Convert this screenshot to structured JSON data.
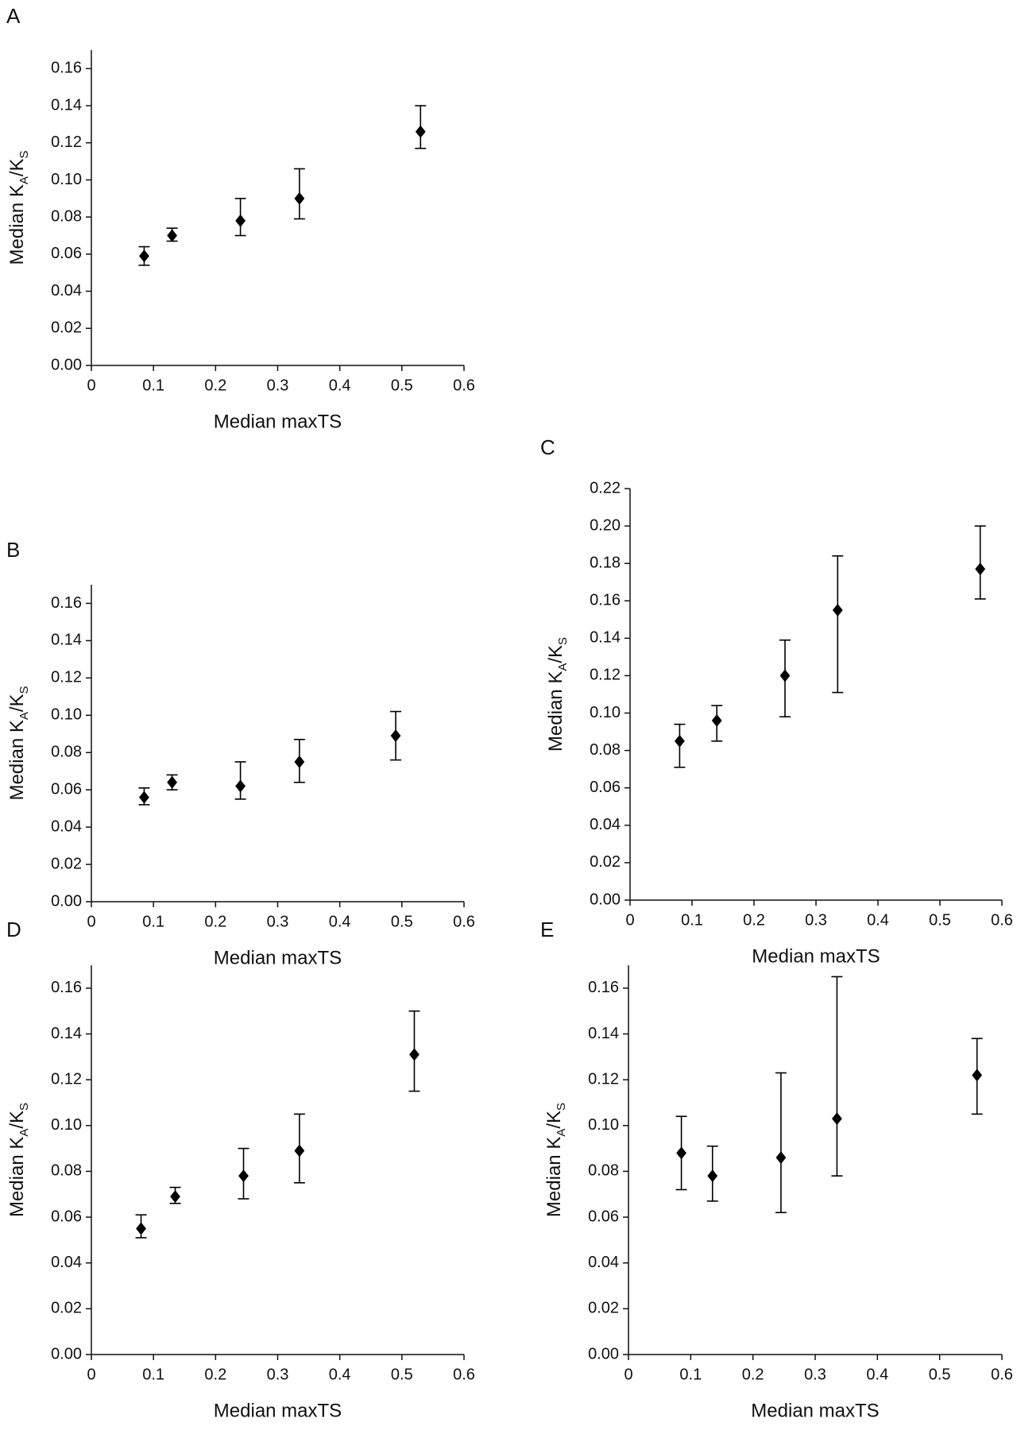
{
  "chart_data": [
    {
      "panel_label": "A",
      "type": "scatter",
      "xlabel": "Median maxTS",
      "ylabel": [
        "Median K",
        "A",
        "/K",
        "S"
      ],
      "color": "#000000",
      "x": [
        0.085,
        0.13,
        0.24,
        0.335,
        0.53
      ],
      "values": [
        0.059,
        0.07,
        0.078,
        0.09,
        0.126
      ],
      "lower": [
        0.054,
        0.067,
        0.07,
        0.079,
        0.117
      ],
      "upper": [
        0.064,
        0.074,
        0.09,
        0.106,
        0.14
      ],
      "xlim": [
        0,
        0.6
      ],
      "ylim": [
        0,
        0.17
      ],
      "xticks": [
        0,
        0.1,
        0.2,
        0.3,
        0.4,
        0.5,
        0.6
      ],
      "yticks": [
        {
          "value": 0,
          "label": "0.00"
        },
        {
          "value": 0.02,
          "label": "0.02"
        },
        {
          "value": 0.04,
          "label": "0.04"
        },
        {
          "value": 0.06,
          "label": "0.06"
        },
        {
          "value": 0.08,
          "label": "0.08"
        },
        {
          "value": 0.1,
          "label": "0.10"
        },
        {
          "value": 0.12,
          "label": "0.12"
        },
        {
          "value": 0.14,
          "label": "0.14"
        },
        {
          "value": 0.16,
          "label": "0.16"
        }
      ]
    },
    {
      "panel_label": "B",
      "type": "scatter",
      "xlabel": "Median maxTS",
      "ylabel": [
        "Median K",
        "A",
        "/K",
        "S"
      ],
      "color": "#000000",
      "x": [
        0.085,
        0.13,
        0.24,
        0.335,
        0.49
      ],
      "values": [
        0.056,
        0.064,
        0.062,
        0.075,
        0.089
      ],
      "lower": [
        0.052,
        0.06,
        0.055,
        0.064,
        0.076
      ],
      "upper": [
        0.061,
        0.068,
        0.075,
        0.087,
        0.102
      ],
      "xlim": [
        0,
        0.6
      ],
      "ylim": [
        0,
        0.17
      ],
      "xticks": [
        0,
        0.1,
        0.2,
        0.3,
        0.4,
        0.5,
        0.6
      ],
      "yticks": [
        {
          "value": 0,
          "label": "0.00"
        },
        {
          "value": 0.02,
          "label": "0.02"
        },
        {
          "value": 0.04,
          "label": "0.04"
        },
        {
          "value": 0.06,
          "label": "0.06"
        },
        {
          "value": 0.08,
          "label": "0.08"
        },
        {
          "value": 0.1,
          "label": "0.10"
        },
        {
          "value": 0.12,
          "label": "0.12"
        },
        {
          "value": 0.14,
          "label": "0.14"
        },
        {
          "value": 0.16,
          "label": "0.16"
        }
      ]
    },
    {
      "panel_label": "C",
      "type": "scatter",
      "xlabel": "Median maxTS",
      "ylabel": [
        "Median K",
        "A",
        "/K",
        "S"
      ],
      "color": "#000000",
      "x": [
        0.08,
        0.14,
        0.25,
        0.335,
        0.565
      ],
      "values": [
        0.085,
        0.096,
        0.12,
        0.155,
        0.177
      ],
      "lower": [
        0.071,
        0.085,
        0.098,
        0.111,
        0.161
      ],
      "upper": [
        0.094,
        0.104,
        0.139,
        0.184,
        0.2
      ],
      "xlim": [
        0,
        0.6
      ],
      "ylim": [
        0,
        0.22
      ],
      "xticks": [
        0,
        0.1,
        0.2,
        0.3,
        0.4,
        0.5,
        0.6
      ],
      "yticks": [
        {
          "value": 0,
          "label": "0.00"
        },
        {
          "value": 0.02,
          "label": "0.02"
        },
        {
          "value": 0.04,
          "label": "0.04"
        },
        {
          "value": 0.06,
          "label": "0.06"
        },
        {
          "value": 0.08,
          "label": "0.08"
        },
        {
          "value": 0.1,
          "label": "0.10"
        },
        {
          "value": 0.12,
          "label": "0.12"
        },
        {
          "value": 0.14,
          "label": "0.14"
        },
        {
          "value": 0.16,
          "label": "0.16"
        },
        {
          "value": 0.18,
          "label": "0.18"
        },
        {
          "value": 0.2,
          "label": "0.20"
        },
        {
          "value": 0.22,
          "label": "0.22"
        }
      ]
    },
    {
      "panel_label": "D",
      "type": "scatter",
      "xlabel": "Median maxTS",
      "ylabel": [
        "Median K",
        "A",
        "/K",
        "S"
      ],
      "color": "#000000",
      "x": [
        0.08,
        0.135,
        0.245,
        0.335,
        0.52
      ],
      "values": [
        0.055,
        0.069,
        0.078,
        0.089,
        0.131
      ],
      "lower": [
        0.051,
        0.066,
        0.068,
        0.075,
        0.115
      ],
      "upper": [
        0.061,
        0.073,
        0.09,
        0.105,
        0.15
      ],
      "xlim": [
        0,
        0.6
      ],
      "ylim": [
        0,
        0.17
      ],
      "xticks": [
        0,
        0.1,
        0.2,
        0.3,
        0.4,
        0.5,
        0.6
      ],
      "yticks": [
        {
          "value": 0,
          "label": "0.00"
        },
        {
          "value": 0.02,
          "label": "0.02"
        },
        {
          "value": 0.04,
          "label": "0.04"
        },
        {
          "value": 0.06,
          "label": "0.06"
        },
        {
          "value": 0.08,
          "label": "0.08"
        },
        {
          "value": 0.1,
          "label": "0.10"
        },
        {
          "value": 0.12,
          "label": "0.12"
        },
        {
          "value": 0.14,
          "label": "0.14"
        },
        {
          "value": 0.16,
          "label": "0.16"
        }
      ]
    },
    {
      "panel_label": "E",
      "type": "scatter",
      "xlabel": "Median maxTS",
      "ylabel": [
        "Median K",
        "A",
        "/K",
        "S"
      ],
      "color": "#000000",
      "x": [
        0.085,
        0.135,
        0.245,
        0.335,
        0.56
      ],
      "values": [
        0.088,
        0.078,
        0.086,
        0.103,
        0.122
      ],
      "lower": [
        0.072,
        0.067,
        0.062,
        0.078,
        0.105
      ],
      "upper": [
        0.104,
        0.091,
        0.123,
        0.165,
        0.138
      ],
      "xlim": [
        0,
        0.6
      ],
      "ylim": [
        0,
        0.17
      ],
      "xticks": [
        0,
        0.1,
        0.2,
        0.3,
        0.4,
        0.5,
        0.6
      ],
      "yticks": [
        {
          "value": 0,
          "label": "0.00"
        },
        {
          "value": 0.02,
          "label": "0.02"
        },
        {
          "value": 0.04,
          "label": "0.04"
        },
        {
          "value": 0.06,
          "label": "0.06"
        },
        {
          "value": 0.08,
          "label": "0.08"
        },
        {
          "value": 0.1,
          "label": "0.10"
        },
        {
          "value": 0.12,
          "label": "0.12"
        },
        {
          "value": 0.14,
          "label": "0.14"
        },
        {
          "value": 0.16,
          "label": "0.16"
        }
      ]
    }
  ]
}
